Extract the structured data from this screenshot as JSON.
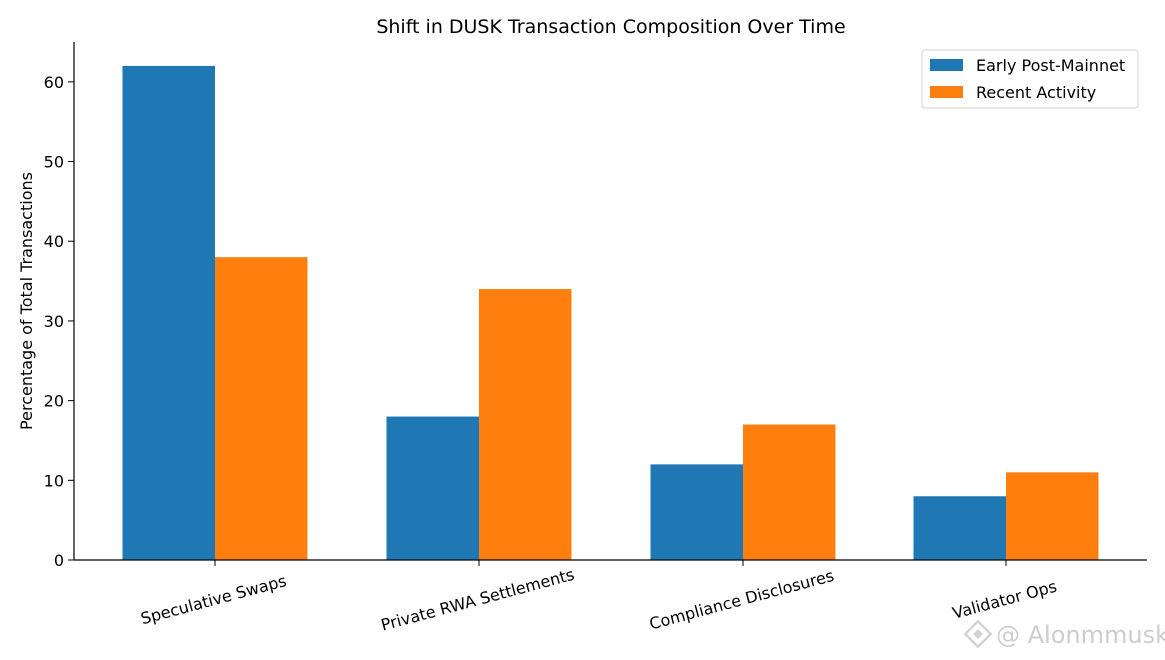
{
  "chart_data": {
    "type": "bar",
    "title": "Shift in DUSK Transaction Composition Over Time",
    "xlabel": "",
    "ylabel": "Percentage of Total Transactions",
    "categories": [
      "Speculative Swaps",
      "Private RWA Settlements",
      "Compliance Disclosures",
      "Validator Ops"
    ],
    "series": [
      {
        "name": "Early Post-Mainnet",
        "values": [
          62,
          18,
          12,
          8
        ],
        "color": "#1f77b4"
      },
      {
        "name": "Recent Activity",
        "values": [
          38,
          34,
          17,
          11
        ],
        "color": "#ff7f0e"
      }
    ],
    "ylim": [
      0,
      65
    ],
    "yticks": [
      0,
      10,
      20,
      30,
      40,
      50,
      60
    ],
    "grid": false,
    "legend_position": "top-right"
  },
  "watermark": {
    "text": "@ Alonmmusk",
    "icon": "diamond-logo-icon"
  }
}
